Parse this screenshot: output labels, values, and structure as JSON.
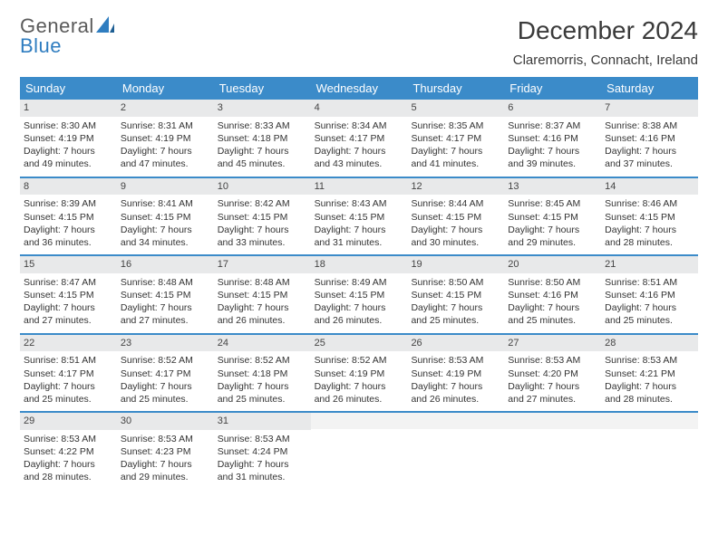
{
  "logo": {
    "text1": "General",
    "text2": "Blue"
  },
  "title": "December 2024",
  "location": "Claremorris, Connacht, Ireland",
  "weekdays": [
    "Sunday",
    "Monday",
    "Tuesday",
    "Wednesday",
    "Thursday",
    "Friday",
    "Saturday"
  ],
  "colors": {
    "header_blue": "#3b8bc9",
    "logo_blue": "#2f7dc0",
    "row_divider": "#3b8bc9",
    "daynum_bg": "#e8e9ea",
    "empty_bg": "#f3f3f3",
    "text": "#333333"
  },
  "grid": {
    "first_weekday_index": 0,
    "days_in_month": 31
  },
  "days": [
    {
      "n": 1,
      "sunrise": "8:30 AM",
      "sunset": "4:19 PM",
      "daylight": "7 hours and 49 minutes."
    },
    {
      "n": 2,
      "sunrise": "8:31 AM",
      "sunset": "4:19 PM",
      "daylight": "7 hours and 47 minutes."
    },
    {
      "n": 3,
      "sunrise": "8:33 AM",
      "sunset": "4:18 PM",
      "daylight": "7 hours and 45 minutes."
    },
    {
      "n": 4,
      "sunrise": "8:34 AM",
      "sunset": "4:17 PM",
      "daylight": "7 hours and 43 minutes."
    },
    {
      "n": 5,
      "sunrise": "8:35 AM",
      "sunset": "4:17 PM",
      "daylight": "7 hours and 41 minutes."
    },
    {
      "n": 6,
      "sunrise": "8:37 AM",
      "sunset": "4:16 PM",
      "daylight": "7 hours and 39 minutes."
    },
    {
      "n": 7,
      "sunrise": "8:38 AM",
      "sunset": "4:16 PM",
      "daylight": "7 hours and 37 minutes."
    },
    {
      "n": 8,
      "sunrise": "8:39 AM",
      "sunset": "4:15 PM",
      "daylight": "7 hours and 36 minutes."
    },
    {
      "n": 9,
      "sunrise": "8:41 AM",
      "sunset": "4:15 PM",
      "daylight": "7 hours and 34 minutes."
    },
    {
      "n": 10,
      "sunrise": "8:42 AM",
      "sunset": "4:15 PM",
      "daylight": "7 hours and 33 minutes."
    },
    {
      "n": 11,
      "sunrise": "8:43 AM",
      "sunset": "4:15 PM",
      "daylight": "7 hours and 31 minutes."
    },
    {
      "n": 12,
      "sunrise": "8:44 AM",
      "sunset": "4:15 PM",
      "daylight": "7 hours and 30 minutes."
    },
    {
      "n": 13,
      "sunrise": "8:45 AM",
      "sunset": "4:15 PM",
      "daylight": "7 hours and 29 minutes."
    },
    {
      "n": 14,
      "sunrise": "8:46 AM",
      "sunset": "4:15 PM",
      "daylight": "7 hours and 28 minutes."
    },
    {
      "n": 15,
      "sunrise": "8:47 AM",
      "sunset": "4:15 PM",
      "daylight": "7 hours and 27 minutes."
    },
    {
      "n": 16,
      "sunrise": "8:48 AM",
      "sunset": "4:15 PM",
      "daylight": "7 hours and 27 minutes."
    },
    {
      "n": 17,
      "sunrise": "8:48 AM",
      "sunset": "4:15 PM",
      "daylight": "7 hours and 26 minutes."
    },
    {
      "n": 18,
      "sunrise": "8:49 AM",
      "sunset": "4:15 PM",
      "daylight": "7 hours and 26 minutes."
    },
    {
      "n": 19,
      "sunrise": "8:50 AM",
      "sunset": "4:15 PM",
      "daylight": "7 hours and 25 minutes."
    },
    {
      "n": 20,
      "sunrise": "8:50 AM",
      "sunset": "4:16 PM",
      "daylight": "7 hours and 25 minutes."
    },
    {
      "n": 21,
      "sunrise": "8:51 AM",
      "sunset": "4:16 PM",
      "daylight": "7 hours and 25 minutes."
    },
    {
      "n": 22,
      "sunrise": "8:51 AM",
      "sunset": "4:17 PM",
      "daylight": "7 hours and 25 minutes."
    },
    {
      "n": 23,
      "sunrise": "8:52 AM",
      "sunset": "4:17 PM",
      "daylight": "7 hours and 25 minutes."
    },
    {
      "n": 24,
      "sunrise": "8:52 AM",
      "sunset": "4:18 PM",
      "daylight": "7 hours and 25 minutes."
    },
    {
      "n": 25,
      "sunrise": "8:52 AM",
      "sunset": "4:19 PM",
      "daylight": "7 hours and 26 minutes."
    },
    {
      "n": 26,
      "sunrise": "8:53 AM",
      "sunset": "4:19 PM",
      "daylight": "7 hours and 26 minutes."
    },
    {
      "n": 27,
      "sunrise": "8:53 AM",
      "sunset": "4:20 PM",
      "daylight": "7 hours and 27 minutes."
    },
    {
      "n": 28,
      "sunrise": "8:53 AM",
      "sunset": "4:21 PM",
      "daylight": "7 hours and 28 minutes."
    },
    {
      "n": 29,
      "sunrise": "8:53 AM",
      "sunset": "4:22 PM",
      "daylight": "7 hours and 28 minutes."
    },
    {
      "n": 30,
      "sunrise": "8:53 AM",
      "sunset": "4:23 PM",
      "daylight": "7 hours and 29 minutes."
    },
    {
      "n": 31,
      "sunrise": "8:53 AM",
      "sunset": "4:24 PM",
      "daylight": "7 hours and 31 minutes."
    }
  ],
  "labels": {
    "sunrise_prefix": "Sunrise: ",
    "sunset_prefix": "Sunset: ",
    "daylight_prefix": "Daylight: "
  }
}
